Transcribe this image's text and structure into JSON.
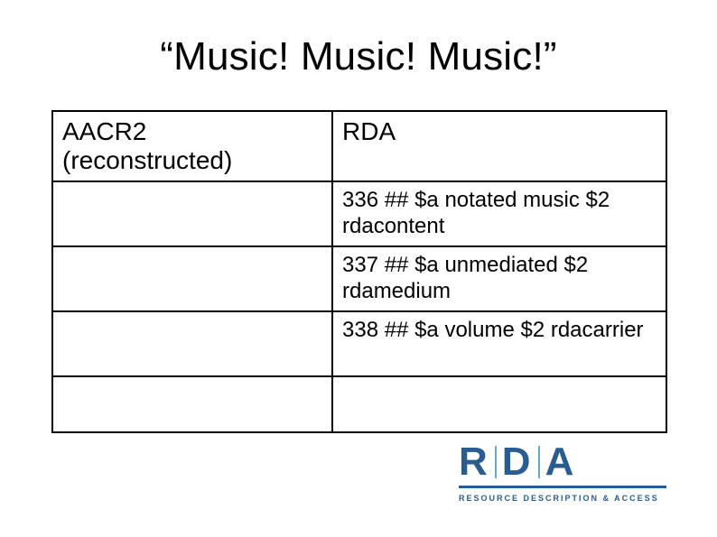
{
  "title": "“Music!  Music!  Music!”",
  "columns": {
    "left": "AACR2 (reconstructed)",
    "right": "RDA"
  },
  "rows": [
    {
      "left": "",
      "right": "336 ##  $a notated music $2 rdacontent"
    },
    {
      "left": "",
      "right": "337 ##  $a unmediated $2 rdamedium"
    },
    {
      "left": "",
      "right": "338 ##  $a volume $2 rdacarrier"
    },
    {
      "left": "",
      "right": ""
    }
  ],
  "logo": {
    "letters": [
      "R",
      "D",
      "A"
    ],
    "subtitle": "RESOURCE DESCRIPTION & ACCESS",
    "brand_color": "#2a5d8f",
    "bar_color": "#6aa6c9"
  }
}
